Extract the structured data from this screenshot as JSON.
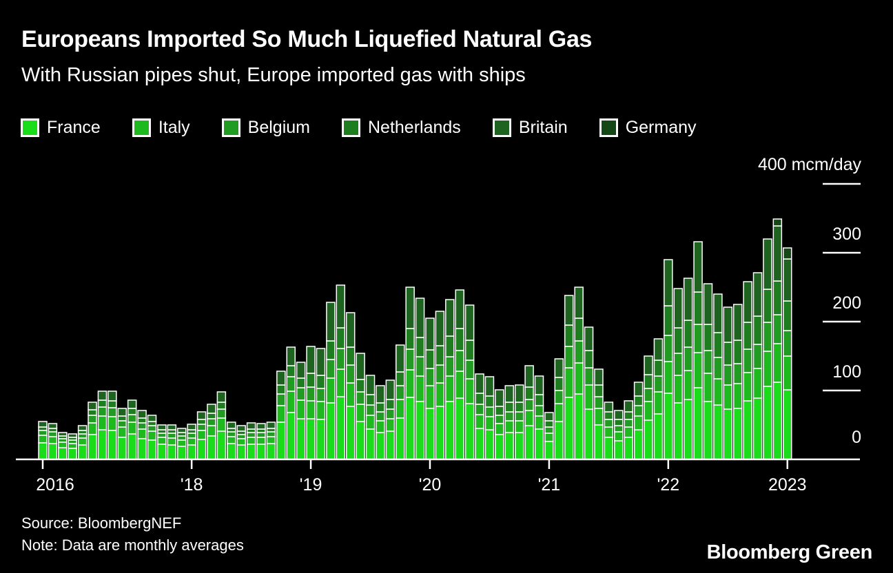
{
  "footer": {
    "source": "Source: BloombergNEF",
    "note": "Note: Data are monthly averages",
    "brand": "Bloomberg Green"
  },
  "legend": [
    {
      "label": "France",
      "color": "#1bdc1b"
    },
    {
      "label": "Italy",
      "color": "#1eb91e"
    },
    {
      "label": "Belgium",
      "color": "#219b21"
    },
    {
      "label": "Netherlands",
      "color": "#1e7d1e"
    },
    {
      "label": "Britain",
      "color": "#1f6320"
    },
    {
      "label": "Germany",
      "color": "#164716"
    }
  ],
  "chart_data": {
    "type": "bar",
    "stacked": true,
    "title": "Europeans Imported So Much Liquefied Natural Gas",
    "subtitle": "With Russian pipes shut, Europe imported gas with ships",
    "ylabel": "mcm/day",
    "ylim": [
      0,
      400
    ],
    "grid": false,
    "legend_position": "top",
    "y_axis": {
      "ticks": [
        {
          "label": "400 mcm/day",
          "value": 400
        },
        {
          "label": "300",
          "value": 300
        },
        {
          "label": "200",
          "value": 200
        },
        {
          "label": "100",
          "value": 100
        },
        {
          "label": "0",
          "value": 0
        }
      ]
    },
    "x_axis": {
      "ticks": [
        {
          "label": "2016",
          "bar_index": 0
        },
        {
          "label": "'18",
          "bar_index": 15
        },
        {
          "label": "'19",
          "bar_index": 27
        },
        {
          "label": "'20",
          "bar_index": 39
        },
        {
          "label": "'21",
          "bar_index": 51
        },
        {
          "label": "'22",
          "bar_index": 63
        },
        {
          "label": "2023",
          "bar_index": 75
        }
      ]
    },
    "series_order": [
      "France",
      "Italy",
      "Belgium",
      "Netherlands",
      "Britain",
      "Germany"
    ],
    "bars_note": "Each bar = one month, values per series in series_order, mcm/day",
    "bars": [
      [
        24,
        11,
        7,
        5,
        8,
        0
      ],
      [
        23,
        10,
        7,
        5,
        7,
        0
      ],
      [
        17,
        8,
        5,
        4,
        5,
        0
      ],
      [
        16,
        7,
        5,
        4,
        5,
        0
      ],
      [
        21,
        10,
        6,
        5,
        7,
        0
      ],
      [
        36,
        17,
        11,
        8,
        11,
        0
      ],
      [
        43,
        20,
        13,
        10,
        13,
        0
      ],
      [
        42,
        20,
        13,
        10,
        14,
        0
      ],
      [
        32,
        15,
        9,
        7,
        11,
        0
      ],
      [
        37,
        17,
        11,
        9,
        12,
        0
      ],
      [
        30,
        14,
        9,
        7,
        11,
        0
      ],
      [
        28,
        13,
        8,
        6,
        9,
        0
      ],
      [
        22,
        10,
        6,
        5,
        7,
        0
      ],
      [
        21,
        10,
        7,
        5,
        7,
        0
      ],
      [
        19,
        9,
        6,
        5,
        6,
        0
      ],
      [
        21,
        10,
        7,
        5,
        8,
        0
      ],
      [
        29,
        13,
        9,
        7,
        11,
        0
      ],
      [
        34,
        15,
        10,
        8,
        13,
        0
      ],
      [
        41,
        19,
        13,
        10,
        15,
        0
      ],
      [
        23,
        10,
        7,
        5,
        9,
        0
      ],
      [
        21,
        9,
        6,
        5,
        8,
        0
      ],
      [
        22,
        10,
        7,
        5,
        9,
        0
      ],
      [
        22,
        10,
        7,
        5,
        8,
        0
      ],
      [
        23,
        10,
        7,
        5,
        9,
        0
      ],
      [
        54,
        24,
        17,
        13,
        20,
        0
      ],
      [
        68,
        31,
        21,
        16,
        27,
        0
      ],
      [
        59,
        27,
        18,
        14,
        23,
        0
      ],
      [
        59,
        26,
        20,
        20,
        39,
        0
      ],
      [
        58,
        26,
        19,
        19,
        39,
        0
      ],
      [
        82,
        36,
        27,
        27,
        56,
        0
      ],
      [
        91,
        40,
        30,
        30,
        62,
        0
      ],
      [
        77,
        34,
        26,
        26,
        50,
        0
      ],
      [
        55,
        25,
        18,
        18,
        38,
        0
      ],
      [
        44,
        20,
        15,
        15,
        28,
        0
      ],
      [
        39,
        17,
        13,
        13,
        25,
        0
      ],
      [
        41,
        18,
        14,
        14,
        28,
        0
      ],
      [
        60,
        27,
        20,
        20,
        39,
        0
      ],
      [
        90,
        40,
        30,
        30,
        60,
        0
      ],
      [
        84,
        37,
        28,
        28,
        57,
        0
      ],
      [
        74,
        33,
        25,
        27,
        46,
        0
      ],
      [
        77,
        34,
        26,
        28,
        50,
        0
      ],
      [
        84,
        37,
        28,
        30,
        53,
        0
      ],
      [
        89,
        39,
        30,
        32,
        56,
        0
      ],
      [
        81,
        36,
        27,
        29,
        51,
        0
      ],
      [
        45,
        20,
        15,
        16,
        28,
        0
      ],
      [
        43,
        19,
        14,
        16,
        28,
        0
      ],
      [
        36,
        16,
        12,
        13,
        24,
        0
      ],
      [
        39,
        17,
        13,
        14,
        24,
        0
      ],
      [
        39,
        17,
        13,
        14,
        25,
        0
      ],
      [
        49,
        22,
        16,
        18,
        31,
        0
      ],
      [
        44,
        19,
        15,
        16,
        27,
        0
      ],
      [
        26,
        12,
        9,
        9,
        12,
        0
      ],
      [
        55,
        26,
        19,
        19,
        27,
        0
      ],
      [
        90,
        43,
        31,
        31,
        43,
        0
      ],
      [
        95,
        45,
        32,
        33,
        45,
        0
      ],
      [
        73,
        35,
        25,
        25,
        34,
        0
      ],
      [
        50,
        24,
        17,
        17,
        23,
        0
      ],
      [
        32,
        15,
        11,
        11,
        14,
        0
      ],
      [
        27,
        13,
        9,
        9,
        13,
        0
      ],
      [
        32,
        15,
        11,
        11,
        16,
        0
      ],
      [
        43,
        20,
        15,
        14,
        20,
        0
      ],
      [
        57,
        27,
        19,
        20,
        27,
        0
      ],
      [
        66,
        32,
        23,
        23,
        31,
        0
      ],
      [
        96,
        46,
        38,
        43,
        67,
        0
      ],
      [
        82,
        40,
        32,
        37,
        57,
        0
      ],
      [
        87,
        42,
        34,
        39,
        61,
        0
      ],
      [
        104,
        51,
        41,
        47,
        73,
        0
      ],
      [
        84,
        41,
        33,
        38,
        59,
        0
      ],
      [
        79,
        38,
        31,
        36,
        56,
        0
      ],
      [
        73,
        35,
        29,
        33,
        51,
        0
      ],
      [
        74,
        36,
        29,
        34,
        52,
        0
      ],
      [
        85,
        41,
        34,
        39,
        59,
        0
      ],
      [
        89,
        43,
        35,
        41,
        63,
        0
      ],
      [
        106,
        51,
        42,
        48,
        73,
        0
      ],
      [
        112,
        56,
        42,
        49,
        80,
        10
      ],
      [
        101,
        49,
        37,
        43,
        61,
        16
      ]
    ]
  }
}
